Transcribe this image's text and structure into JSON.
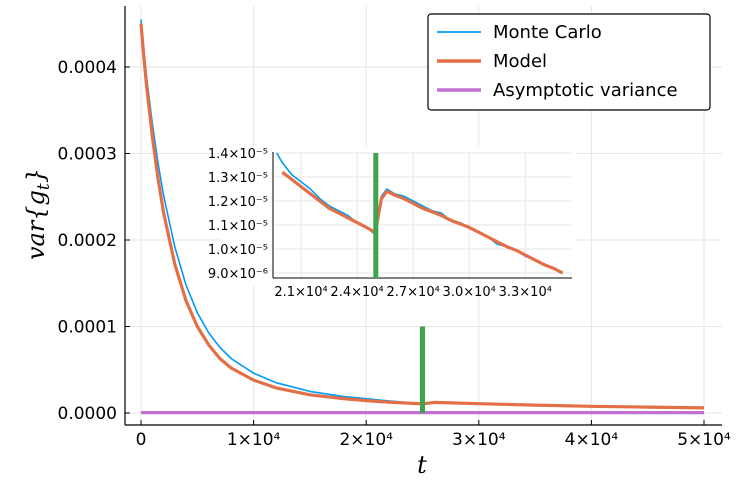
{
  "chart_data": [
    {
      "type": "line",
      "role": "main",
      "xlabel": "t",
      "ylabel": "var{g_t}",
      "xlim": [
        0,
        50000
      ],
      "ylim": [
        0,
        0.00046
      ],
      "x_ticks": [
        0,
        10000,
        20000,
        30000,
        40000,
        50000
      ],
      "x_tick_labels": [
        "0",
        "1×10⁴",
        "2×10⁴",
        "3×10⁴",
        "4×10⁴",
        "5×10⁴"
      ],
      "y_ticks": [
        0,
        0.0001,
        0.0002,
        0.0003,
        0.0004
      ],
      "y_tick_labels": [
        "0.0000",
        "0.0001",
        "0.0002",
        "0.0003",
        "0.0004"
      ],
      "grid": true,
      "legend_position": "top-right",
      "series": [
        {
          "name": "Monte Carlo",
          "color": "#009af9",
          "x": [
            0,
            250,
            500,
            1000,
            1500,
            2000,
            3000,
            4000,
            5000,
            6000,
            7000,
            8000,
            10000,
            12000,
            15000,
            18000,
            20000,
            22000,
            25000,
            26000,
            30000,
            35000,
            40000,
            45000,
            50000
          ],
          "y": [
            0.000455,
            0.00042,
            0.000388,
            0.000335,
            0.00029,
            0.000252,
            0.000192,
            0.000148,
            0.000116,
            9.3e-05,
            7.6e-05,
            6.3e-05,
            4.6e-05,
            3.5e-05,
            2.5e-05,
            1.9e-05,
            1.65e-05,
            1.4e-05,
            1.08e-05,
            1.25e-05,
            1.08e-05,
            9.2e-06,
            7.8e-06,
            6.8e-06,
            6e-06
          ]
        },
        {
          "name": "Model",
          "color": "#e26f46",
          "x": [
            0,
            250,
            500,
            1000,
            1500,
            2000,
            3000,
            4000,
            5000,
            6000,
            7000,
            8000,
            10000,
            12000,
            15000,
            18000,
            20000,
            22000,
            25000,
            26000,
            30000,
            35000,
            40000,
            45000,
            50000
          ],
          "y": [
            0.00045,
            0.000412,
            0.000378,
            0.00032,
            0.000272,
            0.000232,
            0.000172,
            0.00013,
            0.0001,
            7.9e-05,
            6.3e-05,
            5.2e-05,
            3.8e-05,
            2.9e-05,
            2.1e-05,
            1.65e-05,
            1.43e-05,
            1.25e-05,
            1.05e-05,
            1.23e-05,
            1.07e-05,
            9.1e-06,
            7.8e-06,
            6.8e-06,
            5.9e-06
          ]
        },
        {
          "name": "Asymptotic variance",
          "color": "#c271d2",
          "x": [
            0,
            50000
          ],
          "y": [
            5e-07,
            5e-07
          ]
        },
        {
          "name": "",
          "color": "#3da44d",
          "x": [
            25000,
            25000
          ],
          "y": [
            0,
            0.0001
          ]
        }
      ]
    },
    {
      "type": "line",
      "role": "inset",
      "xlim": [
        19500,
        35500
      ],
      "ylim": [
        8.7e-06,
        1.4e-05
      ],
      "x_ticks": [
        21000,
        24000,
        27000,
        30000,
        33000
      ],
      "x_tick_labels": [
        "2.1×10⁴",
        "2.4×10⁴",
        "2.7×10⁴",
        "3.0×10⁴",
        "3.3×10⁴"
      ],
      "y_ticks": [
        9e-06,
        1e-05,
        1.1e-05,
        1.2e-05,
        1.3e-05,
        1.4e-05
      ],
      "y_tick_labels": [
        "9.0×10⁻⁶",
        "1.0×10⁻⁵",
        "1.1×10⁻⁵",
        "1.2×10⁻⁵",
        "1.3×10⁻⁵",
        "1.4×10⁻⁵"
      ],
      "grid": true,
      "series": [
        {
          "name": "Monte Carlo",
          "color": "#009af9",
          "x": [
            19700,
            20000,
            20500,
            21000,
            21500,
            22000,
            22500,
            23000,
            23500,
            24000,
            24500,
            24900,
            25000,
            25300,
            25600,
            26000,
            26500,
            27000,
            27500,
            28000,
            28500,
            29000,
            29500,
            30000,
            30500,
            31000,
            31500,
            32000,
            32500,
            33000,
            33500,
            34000,
            34500,
            35000
          ],
          "y": [
            1.4e-05,
            1.36e-05,
            1.31e-05,
            1.28e-05,
            1.25e-05,
            1.21e-05,
            1.18e-05,
            1.16e-05,
            1.14e-05,
            1.11e-05,
            1.09e-05,
            1.065e-05,
            1.08e-05,
            1.22e-05,
            1.25e-05,
            1.23e-05,
            1.22e-05,
            1.2e-05,
            1.18e-05,
            1.16e-05,
            1.15e-05,
            1.12e-05,
            1.11e-05,
            1.09e-05,
            1.07e-05,
            1.05e-05,
            1.02e-05,
            1.01e-05,
            9.95e-06,
            9.7e-06,
            9.55e-06,
            9.35e-06,
            9.2e-06,
            9e-06
          ]
        },
        {
          "name": "Model",
          "color": "#e26f46",
          "x": [
            20000,
            20500,
            21000,
            21500,
            22000,
            22500,
            23000,
            23500,
            24000,
            24500,
            24950,
            25000,
            25300,
            25600,
            26000,
            26500,
            27000,
            27500,
            28000,
            28500,
            29000,
            29500,
            30000,
            30500,
            31000,
            31500,
            32000,
            32500,
            33000,
            33500,
            34000,
            34500,
            35000
          ],
          "y": [
            1.32e-05,
            1.29e-05,
            1.26e-05,
            1.23e-05,
            1.2e-05,
            1.17e-05,
            1.15e-05,
            1.13e-05,
            1.11e-05,
            1.09e-05,
            1.07e-05,
            1.08e-05,
            1.21e-05,
            1.24e-05,
            1.225e-05,
            1.21e-05,
            1.19e-05,
            1.17e-05,
            1.155e-05,
            1.14e-05,
            1.12e-05,
            1.105e-05,
            1.09e-05,
            1.07e-05,
            1.05e-05,
            1.03e-05,
            1.01e-05,
            9.95e-06,
            9.75e-06,
            9.55e-06,
            9.35e-06,
            9.2e-06,
            9e-06
          ]
        },
        {
          "name": "",
          "color": "#3da44d",
          "x": [
            25000,
            25000
          ],
          "y": [
            8.7e-06,
            1.4e-05
          ]
        }
      ]
    }
  ]
}
